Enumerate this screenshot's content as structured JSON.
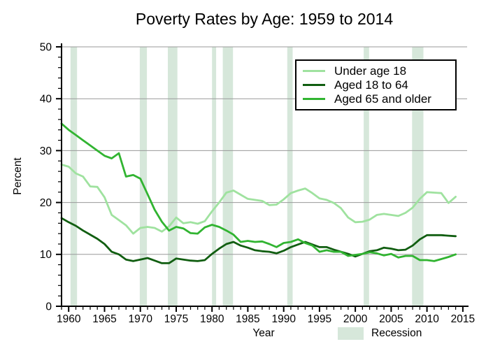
{
  "chart_data": {
    "type": "line",
    "title": "Poverty Rates by Age: 1959 to 2014",
    "xlabel": "Year",
    "ylabel": "Percent",
    "xlim": [
      1959,
      2015.6
    ],
    "ylim": [
      0,
      50
    ],
    "x_major_ticks": [
      1960,
      1965,
      1970,
      1975,
      1980,
      1985,
      1990,
      1995,
      2000,
      2005,
      2010,
      2015
    ],
    "y_major_ticks": [
      0,
      10,
      20,
      30,
      40,
      50
    ],
    "x_minor_step": 1,
    "y_minor_step": 2,
    "grid": "horizontal",
    "legend_position": "top-right",
    "colors": {
      "grid": "#999999",
      "axis": "#000000"
    },
    "years": [
      1959,
      1960,
      1961,
      1962,
      1963,
      1964,
      1965,
      1966,
      1967,
      1968,
      1969,
      1970,
      1971,
      1972,
      1973,
      1974,
      1975,
      1976,
      1977,
      1978,
      1979,
      1980,
      1981,
      1982,
      1983,
      1984,
      1985,
      1986,
      1987,
      1988,
      1989,
      1990,
      1991,
      1992,
      1993,
      1994,
      1995,
      1996,
      1997,
      1998,
      1999,
      2000,
      2001,
      2002,
      2003,
      2004,
      2005,
      2006,
      2007,
      2008,
      2009,
      2010,
      2011,
      2012,
      2013,
      2014
    ],
    "series": [
      {
        "name": "Under age 18",
        "color": "#9fe29f",
        "values": [
          27.3,
          26.9,
          25.6,
          25.0,
          23.1,
          23.0,
          21.0,
          17.6,
          16.6,
          15.6,
          14.0,
          15.1,
          15.3,
          15.1,
          14.4,
          15.4,
          17.1,
          16.0,
          16.2,
          15.9,
          16.4,
          18.3,
          20.0,
          21.9,
          22.3,
          21.5,
          20.7,
          20.5,
          20.3,
          19.5,
          19.6,
          20.6,
          21.8,
          22.3,
          22.7,
          21.8,
          20.8,
          20.5,
          19.9,
          18.9,
          17.1,
          16.2,
          16.3,
          16.7,
          17.6,
          17.8,
          17.6,
          17.4,
          18.0,
          19.0,
          20.7,
          22.0,
          21.9,
          21.8,
          19.9,
          21.1
        ]
      },
      {
        "name": "Aged 18 to 64",
        "color": "#115e11",
        "values": [
          17.0,
          16.2,
          15.5,
          14.6,
          13.8,
          13.0,
          12.0,
          10.5,
          10.0,
          9.0,
          8.7,
          9.0,
          9.3,
          8.8,
          8.3,
          8.3,
          9.2,
          9.0,
          8.8,
          8.7,
          8.9,
          10.1,
          11.1,
          12.0,
          12.4,
          11.7,
          11.3,
          10.8,
          10.6,
          10.5,
          10.2,
          10.7,
          11.4,
          11.9,
          12.4,
          11.9,
          11.4,
          11.4,
          10.9,
          10.5,
          10.1,
          9.6,
          10.1,
          10.6,
          10.8,
          11.3,
          11.1,
          10.8,
          10.9,
          11.7,
          12.9,
          13.7,
          13.7,
          13.7,
          13.6,
          13.5
        ]
      },
      {
        "name": "Aged 65 and older",
        "color": "#31b431",
        "values": [
          35.2,
          34.0,
          33.0,
          32.0,
          31.0,
          30.0,
          29.0,
          28.5,
          29.5,
          25.0,
          25.3,
          24.6,
          21.6,
          18.6,
          16.3,
          14.6,
          15.3,
          15.0,
          14.1,
          14.0,
          15.2,
          15.7,
          15.3,
          14.6,
          13.8,
          12.4,
          12.6,
          12.4,
          12.5,
          12.0,
          11.4,
          12.2,
          12.4,
          12.9,
          12.2,
          11.7,
          10.5,
          10.8,
          10.5,
          10.5,
          9.7,
          9.9,
          10.1,
          10.4,
          10.2,
          9.8,
          10.1,
          9.4,
          9.7,
          9.7,
          8.9,
          8.9,
          8.7,
          9.1,
          9.5,
          10.0
        ]
      }
    ],
    "recessions": {
      "label": "Recession",
      "color": "#d6e7da",
      "bands": [
        [
          1960.25,
          1961.17
        ],
        [
          1969.92,
          1970.92
        ],
        [
          1973.83,
          1975.17
        ],
        [
          1980.0,
          1980.58
        ],
        [
          1981.5,
          1982.92
        ],
        [
          1990.5,
          1991.25
        ],
        [
          2001.17,
          2001.92
        ],
        [
          2007.92,
          2009.5
        ]
      ]
    }
  }
}
